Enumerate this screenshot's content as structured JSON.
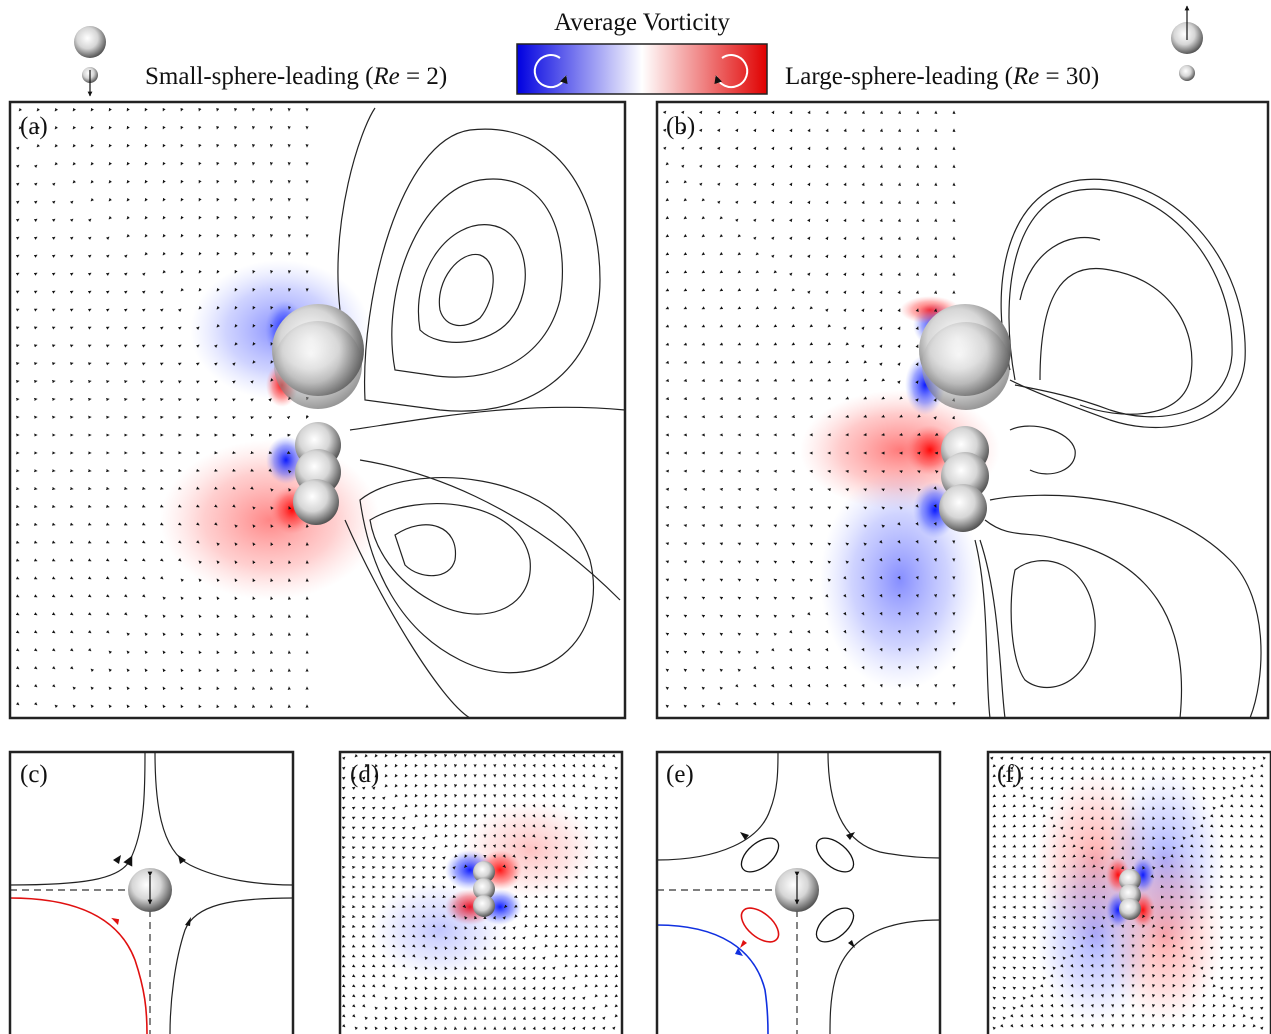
{
  "colorbar": {
    "title": "Average Vorticity"
  },
  "legend": {
    "left": {
      "prefix": "Small-sphere-leading (",
      "italic": "Re",
      "suffix": " = 2)"
    },
    "right": {
      "prefix": "Large-sphere-leading (",
      "italic": "Re",
      "suffix": " = 30)"
    }
  },
  "panels": [
    "(a)",
    "(b)",
    "(c)",
    "(d)",
    "(e)",
    "(f)"
  ]
}
